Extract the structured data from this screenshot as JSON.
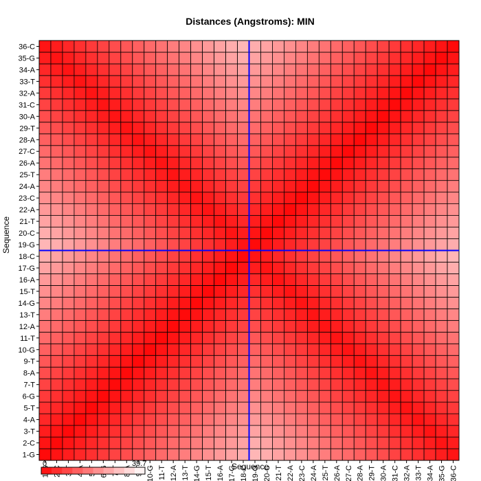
{
  "chart_data": {
    "type": "heatmap",
    "title": "Distances (Angstroms):  MIN",
    "xlabel": "Sequence",
    "ylabel": "Sequence",
    "labels": [
      "1-G",
      "2-C",
      "3-T",
      "4-A",
      "5-T",
      "6-G",
      "7-T",
      "8-A",
      "9-T",
      "10-G",
      "11-T",
      "12-A",
      "13-T",
      "14-G",
      "15-T",
      "16-A",
      "17-G",
      "18-C",
      "19-G",
      "20-C",
      "21-T",
      "22-A",
      "23-C",
      "24-A",
      "25-T",
      "26-A",
      "27-C",
      "28-A",
      "29-T",
      "30-A",
      "31-C",
      "32-A",
      "33-T",
      "34-A",
      "35-G",
      "36-C"
    ],
    "selected_row": "18-C",
    "selected_col": "18-C",
    "color_scale": {
      "min": 0,
      "max": 39.7,
      "min_label": "0",
      "max_label": "39.7",
      "low_color": "#ff0000",
      "high_color": "#ffffff"
    },
    "crosshair_color": "#0000ff",
    "value_model": "distance ≈ min over i,j of 1.55*|i-j| with strand-pairing adjacency i+j=37; range 0–39.7"
  }
}
